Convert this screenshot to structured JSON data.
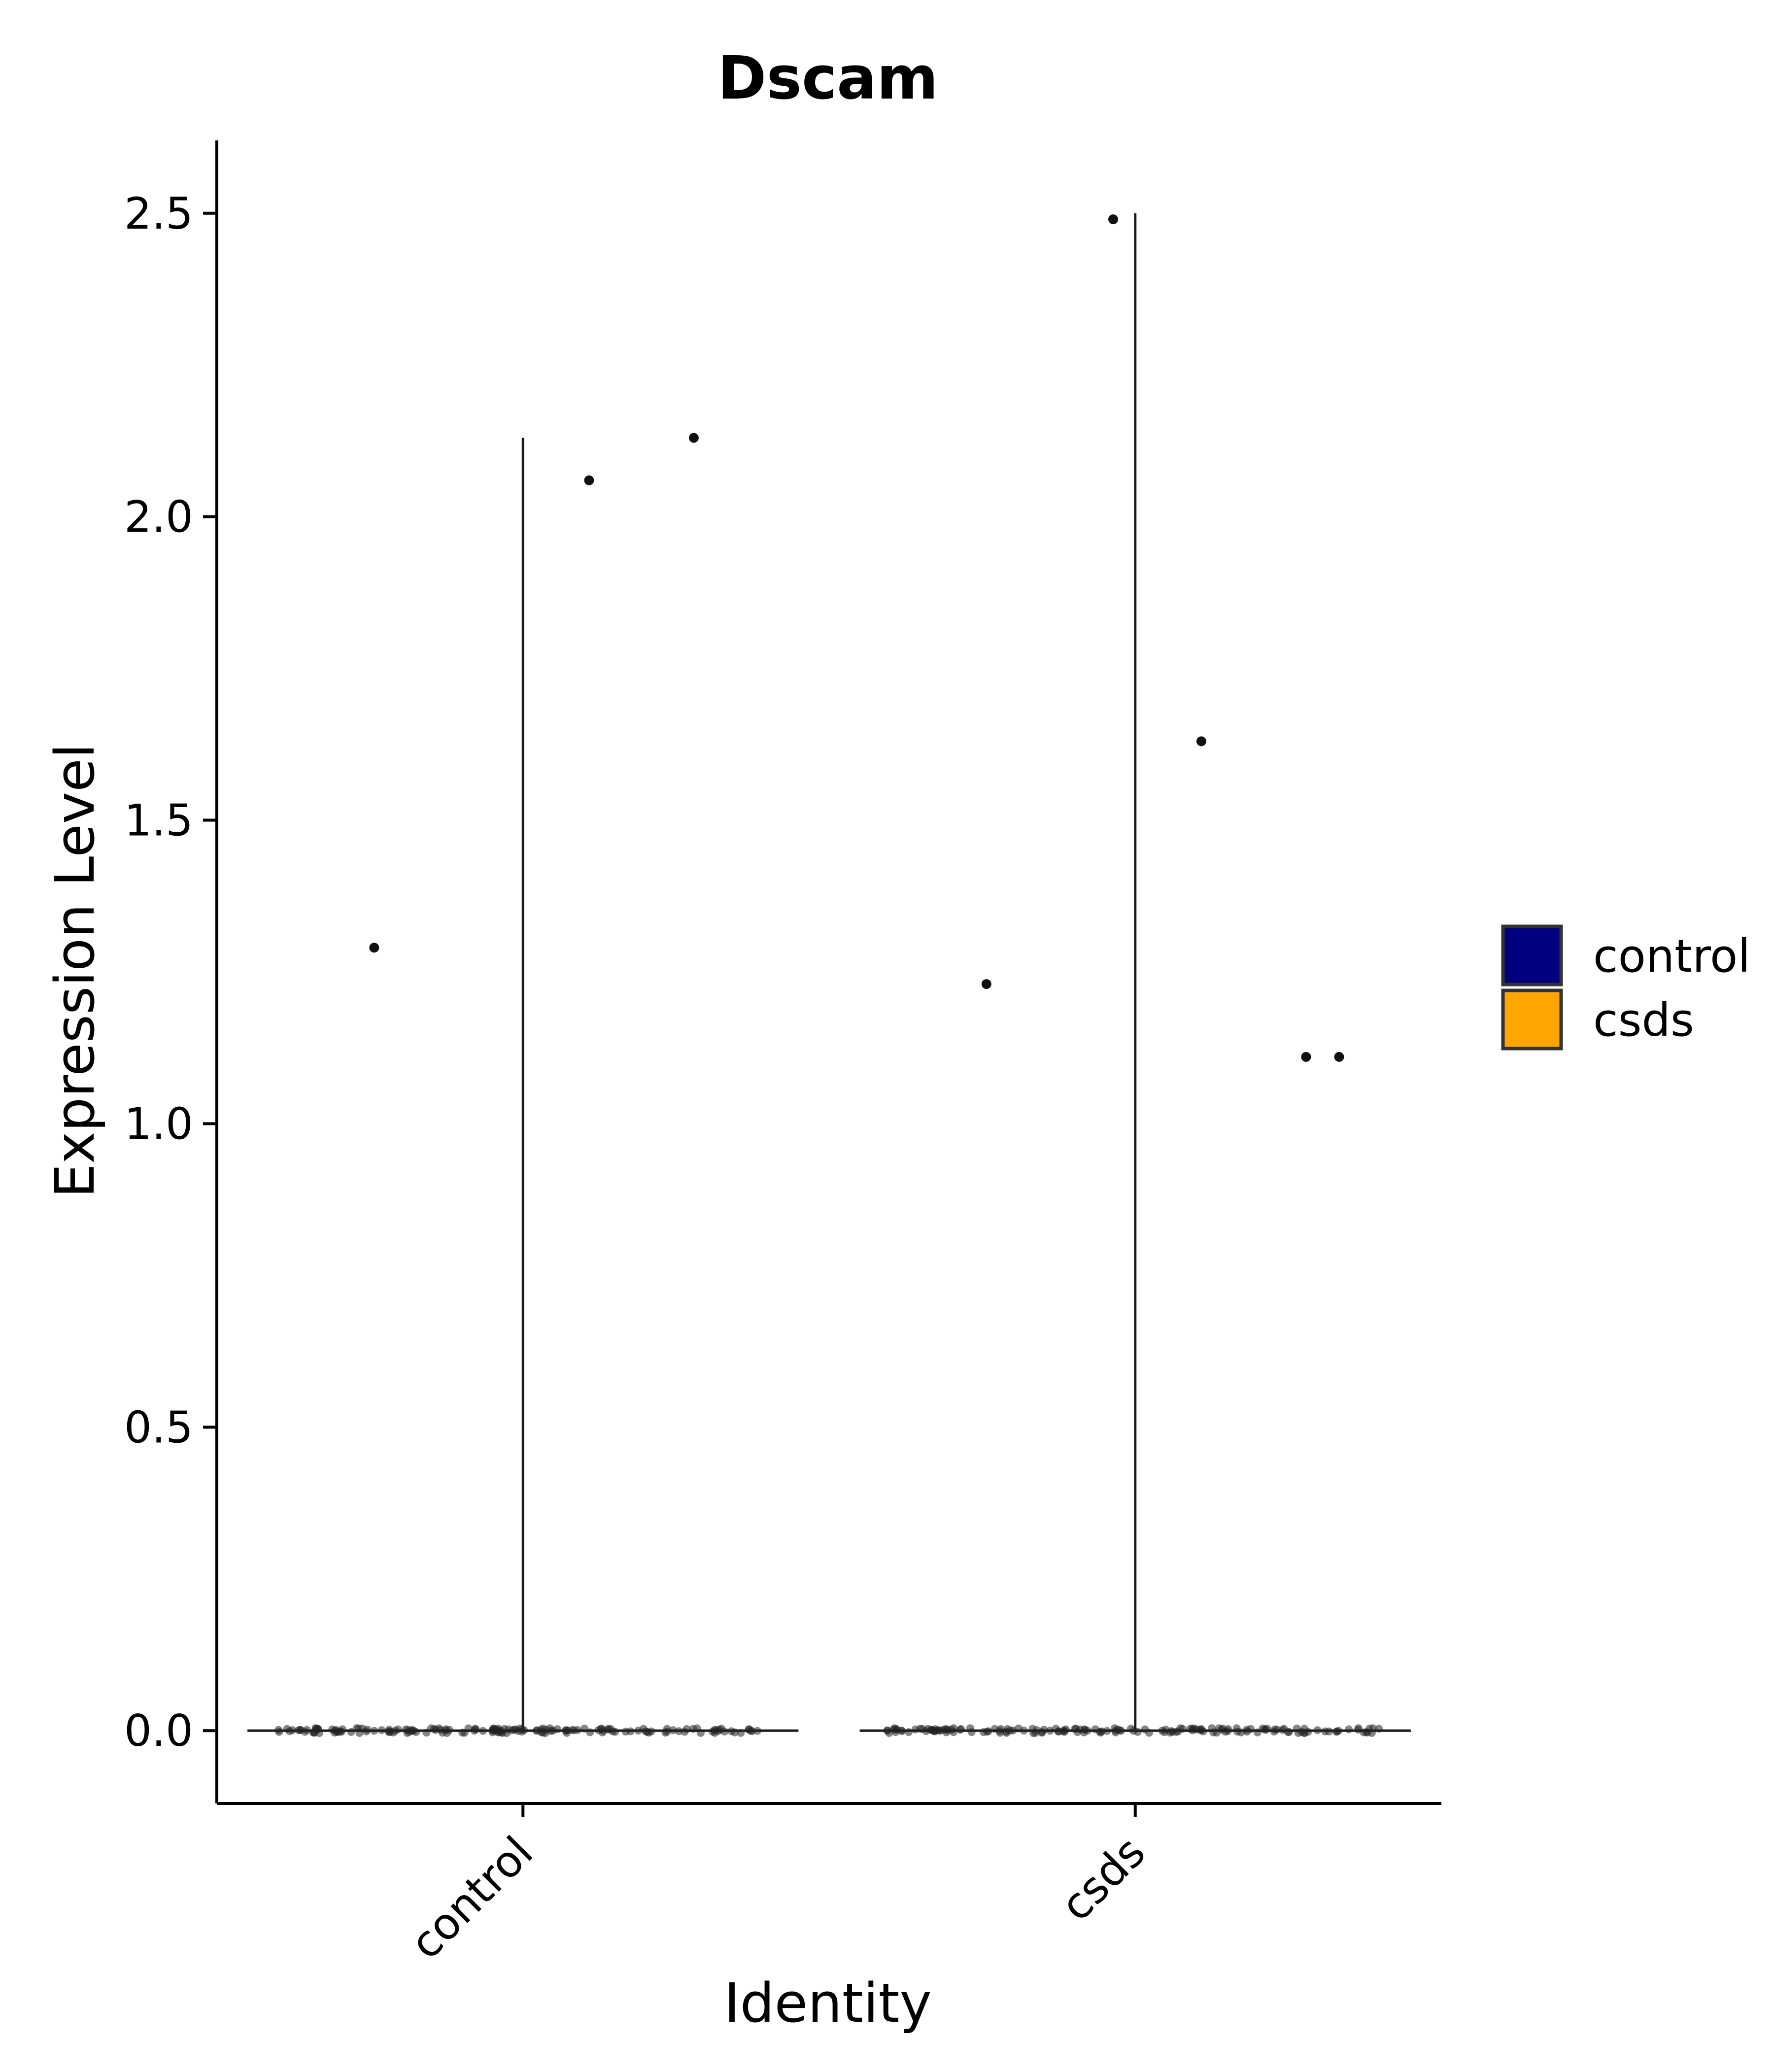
{
  "chart_data": {
    "type": "violin",
    "title": "Dscam",
    "xlabel": "Identity",
    "ylabel": "Expression Level",
    "categories": [
      "control",
      "csds"
    ],
    "ylim": [
      -0.12,
      2.62
    ],
    "yticks": [
      "0.0",
      "0.5",
      "1.0",
      "1.5",
      "2.0",
      "2.5"
    ],
    "grid": false,
    "legend": {
      "placement": "right",
      "entries": [
        {
          "label": "control",
          "color": "#000080"
        },
        {
          "label": "csds",
          "color": "#FFA500"
        }
      ]
    },
    "series": [
      {
        "category": "control",
        "max": 2.13,
        "outliers": [
          1.29,
          2.06,
          2.13
        ]
      },
      {
        "category": "csds",
        "max": 2.5,
        "outliers": [
          1.23,
          1.63,
          1.11,
          2.49,
          1.11
        ]
      }
    ]
  }
}
